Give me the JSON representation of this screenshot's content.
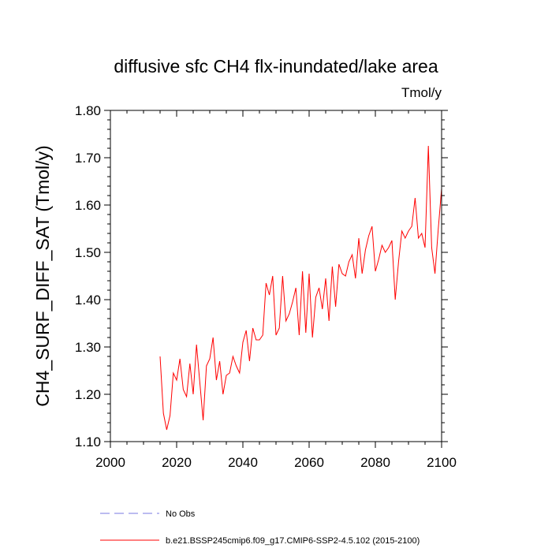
{
  "chart_data": {
    "type": "line",
    "title": "diffusive sfc CH4 flx-inundated/lake area",
    "units": "Tmol/y",
    "ylabel": "CH4_SURF_DIFF_SAT  (Tmol/y)",
    "xlabel": "",
    "xlim": [
      2000,
      2100
    ],
    "ylim": [
      1.1,
      1.8
    ],
    "xticks": [
      2000,
      2020,
      2040,
      2060,
      2080,
      2100
    ],
    "xtick_labels": [
      "2000",
      "2020",
      "2040",
      "2060",
      "2080",
      "2100"
    ],
    "yticks": [
      1.1,
      1.2,
      1.3,
      1.4,
      1.5,
      1.6,
      1.7,
      1.8
    ],
    "ytick_labels": [
      "1.10",
      "1.20",
      "1.30",
      "1.40",
      "1.50",
      "1.60",
      "1.70",
      "1.80"
    ],
    "grid": false,
    "legend_position": "bottom",
    "series": [
      {
        "name": "No Obs",
        "color": "#7a7ae0",
        "style": "dashed",
        "x": [],
        "y": []
      },
      {
        "name": "b.e21.BSSP245cmip6.f09_g17.CMIP6-SSP2-4.5.102 (2015-2100)",
        "color": "#ff0000",
        "style": "solid",
        "x": [
          2015,
          2016,
          2017,
          2018,
          2019,
          2020,
          2021,
          2022,
          2023,
          2024,
          2025,
          2026,
          2027,
          2028,
          2029,
          2030,
          2031,
          2032,
          2033,
          2034,
          2035,
          2036,
          2037,
          2038,
          2039,
          2040,
          2041,
          2042,
          2043,
          2044,
          2045,
          2046,
          2047,
          2048,
          2049,
          2050,
          2051,
          2052,
          2053,
          2054,
          2055,
          2056,
          2057,
          2058,
          2059,
          2060,
          2061,
          2062,
          2063,
          2064,
          2065,
          2066,
          2067,
          2068,
          2069,
          2070,
          2071,
          2072,
          2073,
          2074,
          2075,
          2076,
          2077,
          2078,
          2079,
          2080,
          2081,
          2082,
          2083,
          2084,
          2085,
          2086,
          2087,
          2088,
          2089,
          2090,
          2091,
          2092,
          2093,
          2094,
          2095,
          2096,
          2097,
          2098,
          2099,
          2100
        ],
        "y": [
          1.28,
          1.16,
          1.125,
          1.155,
          1.245,
          1.23,
          1.275,
          1.21,
          1.195,
          1.265,
          1.2,
          1.305,
          1.225,
          1.145,
          1.26,
          1.275,
          1.32,
          1.23,
          1.27,
          1.2,
          1.24,
          1.245,
          1.28,
          1.26,
          1.245,
          1.31,
          1.335,
          1.27,
          1.34,
          1.315,
          1.315,
          1.325,
          1.435,
          1.41,
          1.45,
          1.325,
          1.34,
          1.45,
          1.355,
          1.37,
          1.395,
          1.425,
          1.325,
          1.46,
          1.33,
          1.455,
          1.32,
          1.405,
          1.425,
          1.38,
          1.445,
          1.355,
          1.47,
          1.385,
          1.475,
          1.455,
          1.45,
          1.48,
          1.495,
          1.445,
          1.53,
          1.455,
          1.505,
          1.535,
          1.555,
          1.46,
          1.485,
          1.515,
          1.5,
          1.51,
          1.525,
          1.4,
          1.48,
          1.545,
          1.53,
          1.545,
          1.555,
          1.615,
          1.53,
          1.54,
          1.51,
          1.725,
          1.51,
          1.455,
          1.55,
          1.635
        ]
      }
    ]
  }
}
